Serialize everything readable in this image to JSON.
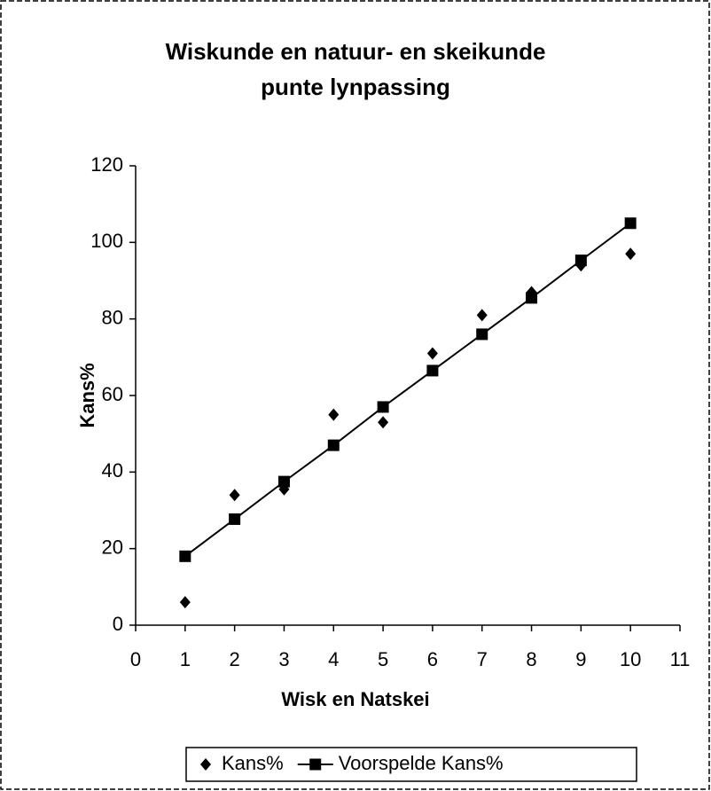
{
  "chart_data": {
    "type": "scatter",
    "title": [
      "Wiskunde en natuur- en skeikunde",
      "punte  lynpassing"
    ],
    "xlabel": "Wisk en Natskei",
    "ylabel": "Kans%",
    "xlim": [
      0,
      11
    ],
    "xticks": [
      0,
      1,
      2,
      3,
      4,
      5,
      6,
      7,
      8,
      9,
      10,
      11
    ],
    "ylim": [
      0,
      120
    ],
    "yticks": [
      0,
      20,
      40,
      60,
      80,
      100,
      120
    ],
    "grid": false,
    "legend": "bottom",
    "series": [
      {
        "name": "Kans%",
        "color": "#000000",
        "marker": "diamond",
        "line": false,
        "x": [
          1,
          2,
          3,
          4,
          5,
          6,
          7,
          8,
          9,
          10
        ],
        "values": [
          6,
          34,
          35.5,
          55,
          53,
          71,
          81,
          87,
          94,
          97
        ]
      },
      {
        "name": "Voorspelde Kans%",
        "color": "#000000",
        "marker": "square",
        "line": true,
        "x": [
          1,
          2,
          3,
          4,
          5,
          6,
          7,
          8,
          9,
          10
        ],
        "values": [
          18,
          27.7,
          37.5,
          47,
          57,
          66.5,
          76,
          85.5,
          95.3,
          105
        ]
      }
    ]
  }
}
